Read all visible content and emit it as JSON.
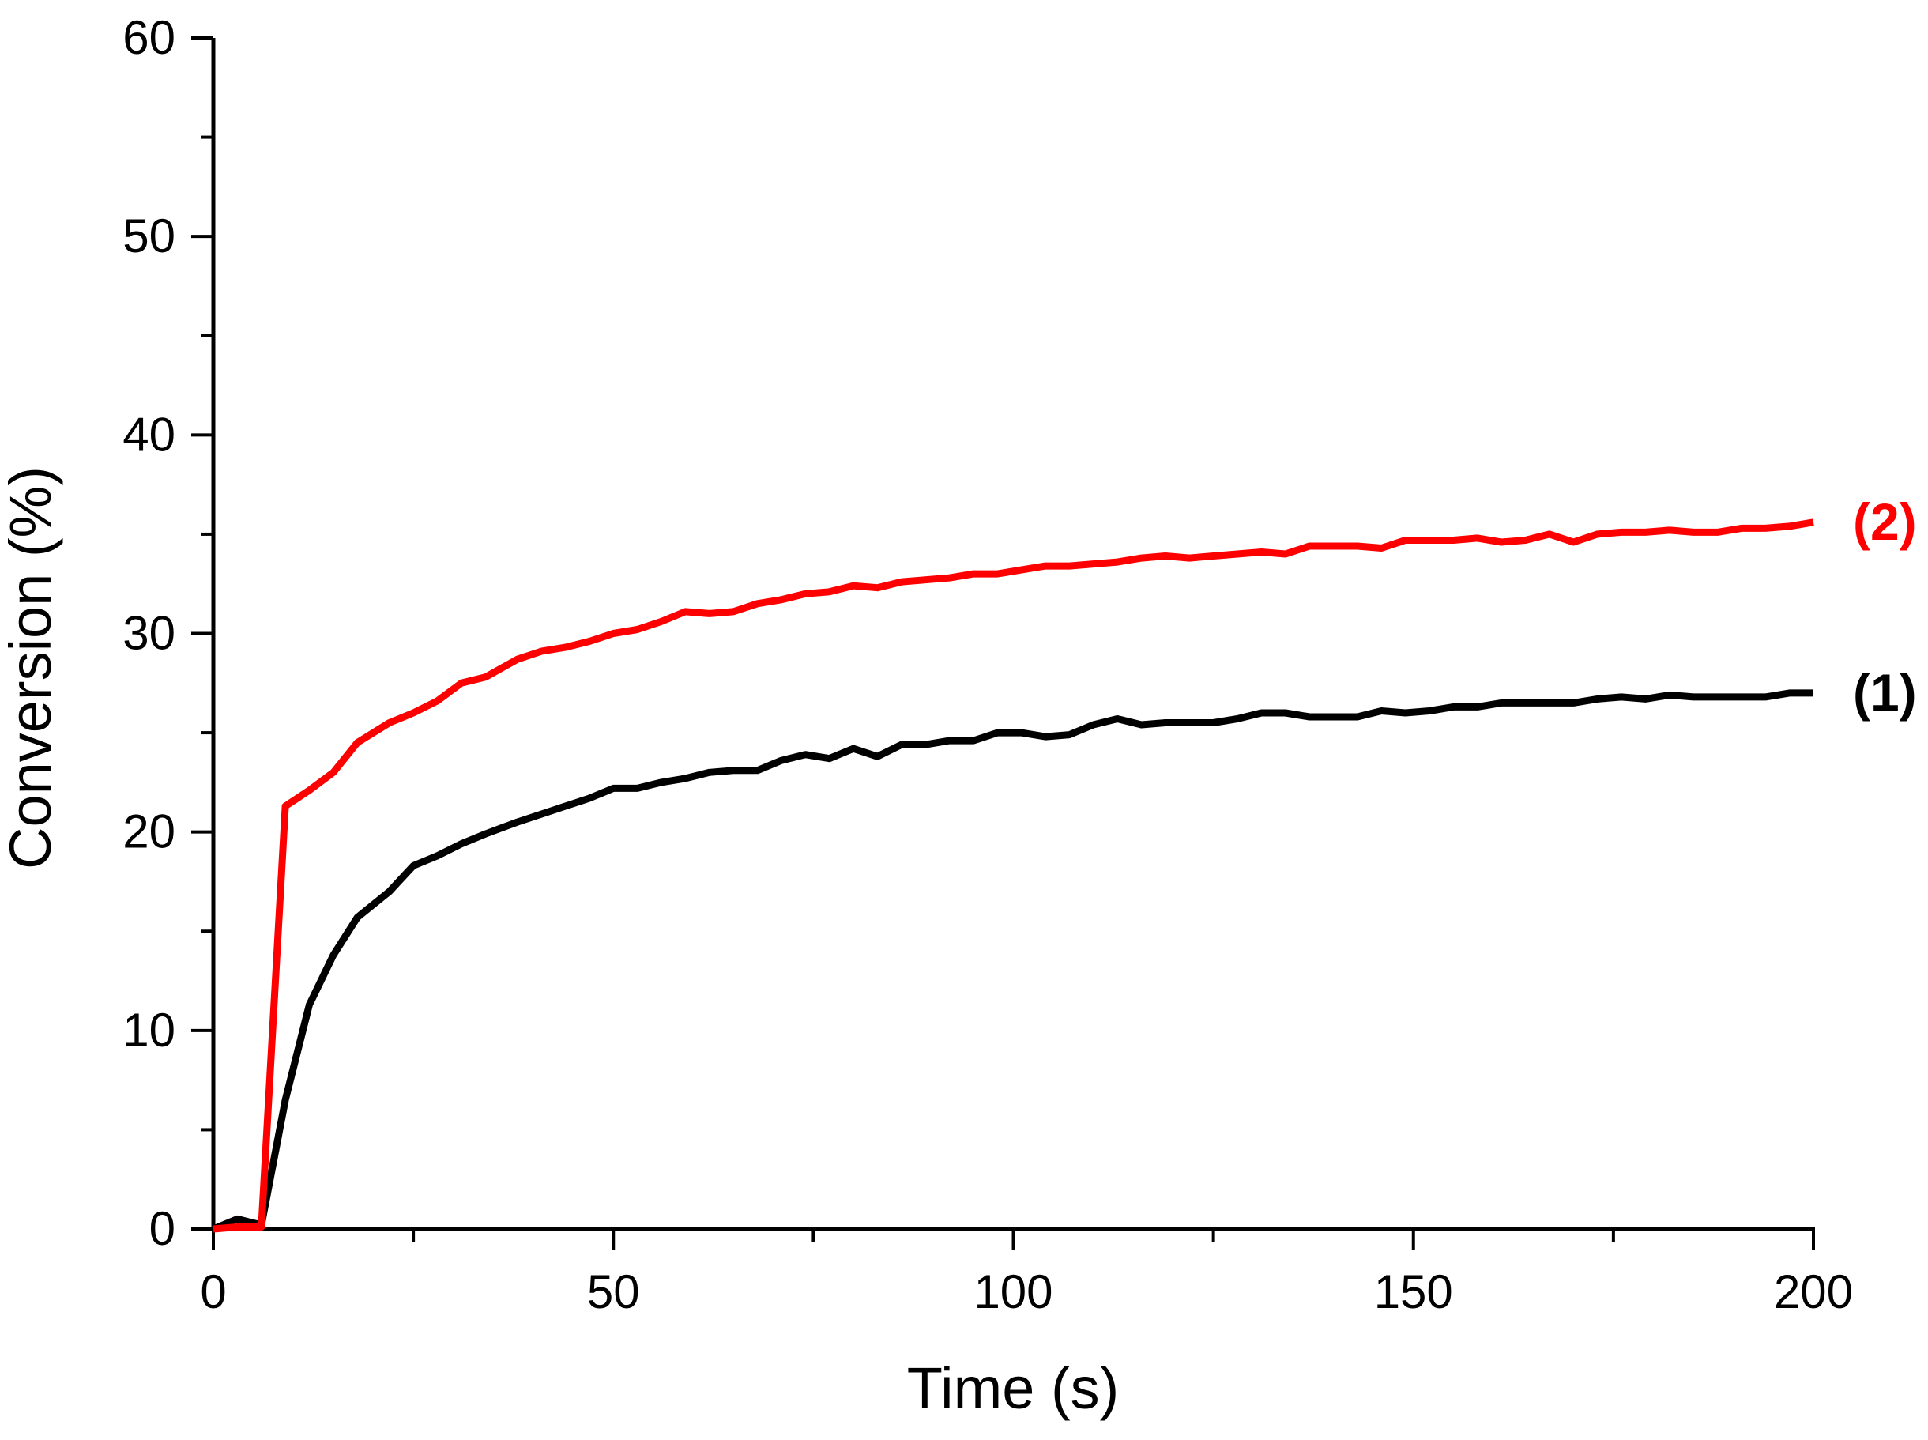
{
  "chart_data": {
    "type": "line",
    "xlabel": "Time (s)",
    "ylabel": "Conversion (%)",
    "xlim": [
      0,
      200
    ],
    "ylim": [
      0,
      60
    ],
    "x_ticks": [
      0,
      50,
      100,
      150,
      200
    ],
    "y_ticks": [
      0,
      10,
      20,
      30,
      40,
      50,
      60
    ],
    "grid": false,
    "series": [
      {
        "name": "(1)",
        "color": "#000000",
        "x": [
          0,
          3,
          6,
          9,
          12,
          15,
          18,
          22,
          25,
          28,
          31,
          34,
          38,
          41,
          44,
          47,
          50,
          53,
          56,
          59,
          62,
          65,
          68,
          71,
          74,
          77,
          80,
          83,
          86,
          89,
          92,
          95,
          98,
          101,
          104,
          107,
          110,
          113,
          116,
          119,
          122,
          125,
          128,
          131,
          134,
          137,
          140,
          143,
          146,
          149,
          152,
          155,
          158,
          161,
          164,
          167,
          170,
          173,
          176,
          179,
          182,
          185,
          188,
          191,
          194,
          197,
          200
        ],
        "values": [
          0,
          0.5,
          0.2,
          6.5,
          11.3,
          13.8,
          15.7,
          17.0,
          18.3,
          18.8,
          19.4,
          19.9,
          20.5,
          20.9,
          21.3,
          21.7,
          22.2,
          22.2,
          22.5,
          22.7,
          23.0,
          23.1,
          23.1,
          23.6,
          23.9,
          23.7,
          24.2,
          23.8,
          24.4,
          24.4,
          24.6,
          24.6,
          25.0,
          25.0,
          24.8,
          24.9,
          25.4,
          25.7,
          25.4,
          25.5,
          25.5,
          25.5,
          25.7,
          26.0,
          26.0,
          25.8,
          25.8,
          25.8,
          26.1,
          26.0,
          26.1,
          26.3,
          26.3,
          26.5,
          26.5,
          26.5,
          26.5,
          26.7,
          26.8,
          26.7,
          26.9,
          26.8,
          26.8,
          26.8,
          26.8,
          27.0,
          27.0
        ]
      },
      {
        "name": "(2)",
        "color": "#ff0000",
        "x": [
          0,
          3,
          6,
          9,
          12,
          15,
          18,
          22,
          25,
          28,
          31,
          34,
          38,
          41,
          44,
          47,
          50,
          53,
          56,
          59,
          62,
          65,
          68,
          71,
          74,
          77,
          80,
          83,
          86,
          89,
          92,
          95,
          98,
          101,
          104,
          107,
          110,
          113,
          116,
          119,
          122,
          125,
          128,
          131,
          134,
          137,
          140,
          143,
          146,
          149,
          152,
          155,
          158,
          161,
          164,
          167,
          170,
          173,
          176,
          179,
          182,
          185,
          188,
          191,
          194,
          197,
          200
        ],
        "values": [
          0,
          0.1,
          0.1,
          21.3,
          22.1,
          23.0,
          24.5,
          25.5,
          26.0,
          26.6,
          27.5,
          27.8,
          28.7,
          29.1,
          29.3,
          29.6,
          30.0,
          30.2,
          30.6,
          31.1,
          31.0,
          31.1,
          31.5,
          31.7,
          32.0,
          32.1,
          32.4,
          32.3,
          32.6,
          32.7,
          32.8,
          33.0,
          33.0,
          33.2,
          33.4,
          33.4,
          33.5,
          33.6,
          33.8,
          33.9,
          33.8,
          33.9,
          34.0,
          34.1,
          34.0,
          34.4,
          34.4,
          34.4,
          34.3,
          34.7,
          34.7,
          34.7,
          34.8,
          34.6,
          34.7,
          35.0,
          34.6,
          35.0,
          35.1,
          35.1,
          35.2,
          35.1,
          35.1,
          35.3,
          35.3,
          35.4,
          35.6
        ]
      }
    ]
  }
}
